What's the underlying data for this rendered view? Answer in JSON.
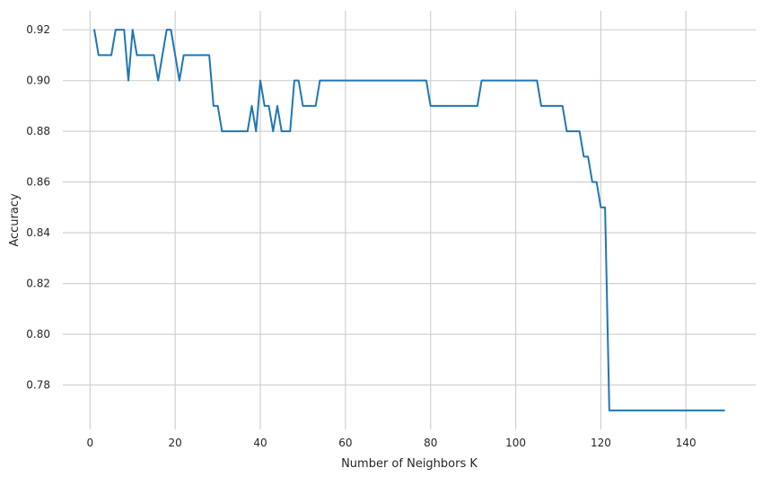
{
  "chart_data": {
    "type": "line",
    "title": "",
    "xlabel": "Number of Neighbors K",
    "ylabel": "Accuracy",
    "xlim": [
      -6.4,
      156.4
    ],
    "ylim": [
      0.7625,
      0.9275
    ],
    "x_ticks": [
      0,
      20,
      40,
      60,
      80,
      100,
      120,
      140
    ],
    "y_ticks": [
      0.78,
      0.8,
      0.82,
      0.84,
      0.86,
      0.88,
      0.9,
      0.92
    ],
    "x_tick_labels": [
      "0",
      "20",
      "40",
      "60",
      "80",
      "100",
      "120",
      "140"
    ],
    "y_tick_labels": [
      "0.78",
      "0.80",
      "0.82",
      "0.84",
      "0.86",
      "0.88",
      "0.90",
      "0.92"
    ],
    "grid": true,
    "line_color": "#1f77b4",
    "grid_color": "#d0d0d0",
    "series": [
      {
        "x": [
          1,
          2,
          3,
          4,
          5,
          6,
          7,
          8,
          9,
          10,
          11,
          12,
          13,
          14,
          15,
          16,
          17,
          18,
          19,
          20,
          21,
          22,
          23,
          24,
          25,
          26,
          27,
          28,
          29,
          30,
          31,
          32,
          33,
          34,
          35,
          36,
          37,
          38,
          39,
          40,
          41,
          42,
          43,
          44,
          45,
          46,
          47,
          48,
          49,
          50,
          51,
          52,
          53,
          54,
          55,
          56,
          57,
          58,
          59,
          60,
          61,
          62,
          63,
          64,
          65,
          66,
          67,
          68,
          69,
          70,
          71,
          72,
          73,
          74,
          75,
          76,
          77,
          78,
          79,
          80,
          81,
          82,
          83,
          84,
          85,
          86,
          87,
          88,
          89,
          90,
          91,
          92,
          93,
          94,
          95,
          96,
          97,
          98,
          99,
          100,
          101,
          102,
          103,
          104,
          105,
          106,
          107,
          108,
          109,
          110,
          111,
          112,
          113,
          114,
          115,
          116,
          117,
          118,
          119,
          120,
          121,
          122,
          123,
          124,
          125,
          126,
          127,
          128,
          129,
          130,
          131,
          132,
          133,
          134,
          135,
          136,
          137,
          138,
          139,
          140,
          141,
          142,
          143,
          144,
          145,
          146,
          147,
          148,
          149
        ],
        "values": [
          0.92,
          0.91,
          0.91,
          0.91,
          0.91,
          0.92,
          0.92,
          0.92,
          0.9,
          0.92,
          0.91,
          0.91,
          0.91,
          0.91,
          0.91,
          0.9,
          0.91,
          0.92,
          0.92,
          0.91,
          0.9,
          0.91,
          0.91,
          0.91,
          0.91,
          0.91,
          0.91,
          0.91,
          0.89,
          0.89,
          0.88,
          0.88,
          0.88,
          0.88,
          0.88,
          0.88,
          0.88,
          0.89,
          0.88,
          0.9,
          0.89,
          0.89,
          0.88,
          0.89,
          0.88,
          0.88,
          0.88,
          0.9,
          0.9,
          0.89,
          0.89,
          0.89,
          0.89,
          0.9,
          0.9,
          0.9,
          0.9,
          0.9,
          0.9,
          0.9,
          0.9,
          0.9,
          0.9,
          0.9,
          0.9,
          0.9,
          0.9,
          0.9,
          0.9,
          0.9,
          0.9,
          0.9,
          0.9,
          0.9,
          0.9,
          0.9,
          0.9,
          0.9,
          0.9,
          0.89,
          0.89,
          0.89,
          0.89,
          0.89,
          0.89,
          0.89,
          0.89,
          0.89,
          0.89,
          0.89,
          0.89,
          0.9,
          0.9,
          0.9,
          0.9,
          0.9,
          0.9,
          0.9,
          0.9,
          0.9,
          0.9,
          0.9,
          0.9,
          0.9,
          0.9,
          0.89,
          0.89,
          0.89,
          0.89,
          0.89,
          0.89,
          0.88,
          0.88,
          0.88,
          0.88,
          0.87,
          0.87,
          0.86,
          0.86,
          0.85,
          0.85,
          0.77,
          0.77,
          0.77,
          0.77,
          0.77,
          0.77,
          0.77,
          0.77,
          0.77,
          0.77,
          0.77,
          0.77,
          0.77,
          0.77,
          0.77,
          0.77,
          0.77,
          0.77,
          0.77,
          0.77,
          0.77,
          0.77,
          0.77,
          0.77,
          0.77,
          0.77,
          0.77,
          0.77
        ]
      }
    ]
  }
}
